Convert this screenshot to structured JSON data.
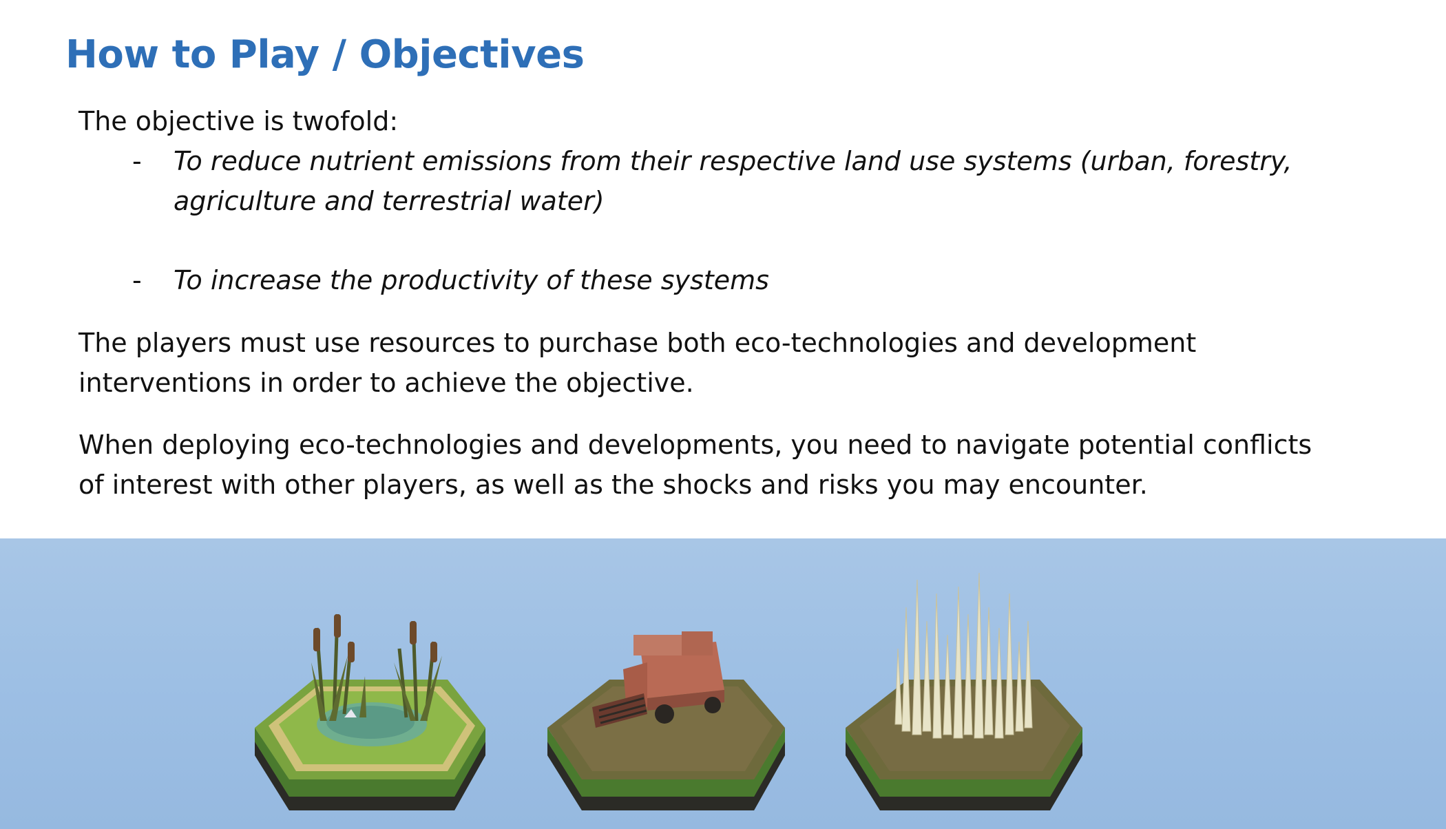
{
  "title": "How to Play / Objectives",
  "objective_intro": "The objective is twofold:",
  "bullets": [
    {
      "dash": "-",
      "lines": [
        "To reduce nutrient emissions from their respective land use systems (urban, forestry,",
        "agriculture and terrestrial water)"
      ]
    },
    {
      "dash": "-",
      "lines": [
        "To increase the productivity of these systems"
      ]
    }
  ],
  "paragraphs": [
    {
      "lines": [
        "The players must use resources to purchase both eco-technologies and development",
        "interventions in order to achieve the objective."
      ]
    },
    {
      "lines": [
        "When deploying eco-technologies and developments, you need to navigate potential conflicts",
        "of interest with other players, as well as the shocks and risks you may encounter."
      ]
    }
  ],
  "illustrations": [
    {
      "name": "wetland-tile-icon"
    },
    {
      "name": "harvester-tile-icon"
    },
    {
      "name": "reeds-tile-icon"
    }
  ],
  "colors": {
    "title": "#2e6fb7",
    "banner": "#9dbfe4",
    "grass": "#5a8a3a",
    "tile_base": "#3a3a33"
  }
}
